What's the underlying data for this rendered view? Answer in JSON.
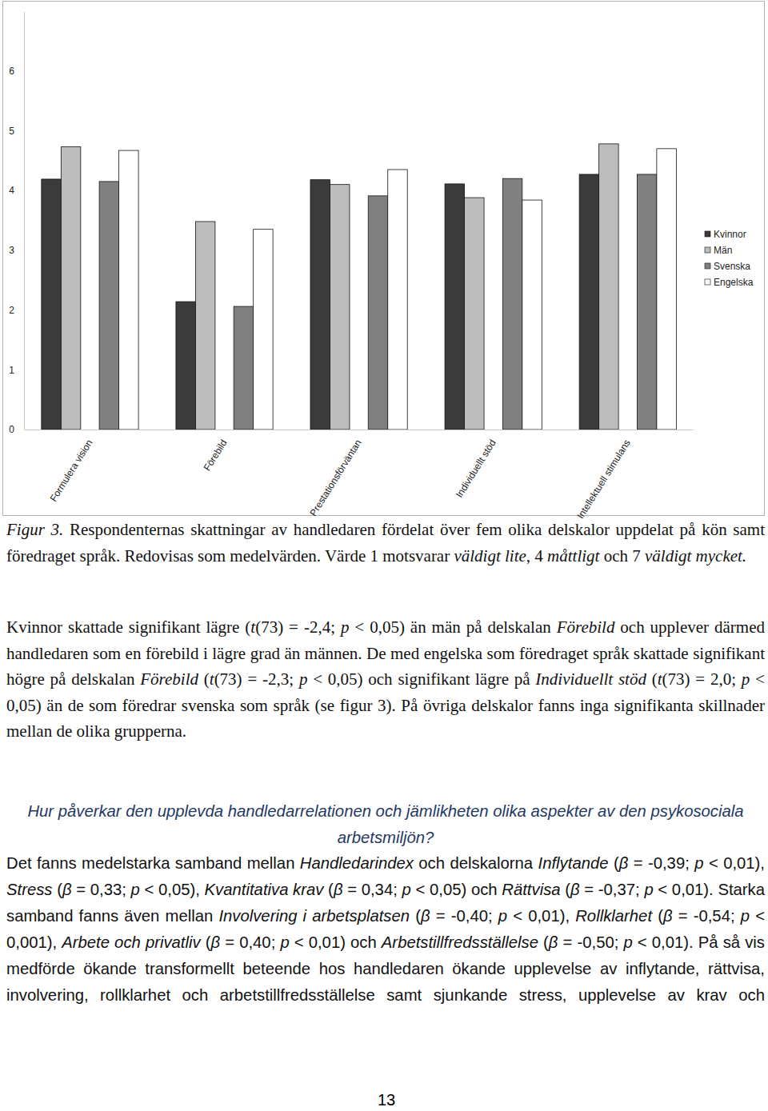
{
  "chart_data": {
    "type": "bar",
    "categories": [
      "Formulera vision",
      "Förebild",
      "Prestationsförväntan",
      "Individuellt stöd",
      "Intellektuell stimulans"
    ],
    "series": [
      {
        "name": "Kvinnor",
        "color": "#3b3b3b",
        "values": [
          4.19,
          2.14,
          4.18,
          4.11,
          4.27
        ]
      },
      {
        "name": "Män",
        "color": "#bdbdbd",
        "values": [
          4.73,
          3.48,
          4.1,
          3.88,
          4.78
        ]
      },
      {
        "name": "Svenska",
        "color": "#808080",
        "values": [
          4.15,
          2.06,
          3.91,
          4.2,
          4.27
        ]
      },
      {
        "name": "Engelska",
        "color": "#ffffff",
        "values": [
          4.67,
          3.35,
          4.35,
          3.84,
          4.7
        ]
      }
    ],
    "ylim": [
      0,
      7
    ],
    "yticks": [
      0,
      1,
      2,
      3,
      4,
      5,
      6
    ],
    "grid": false,
    "legend": "right"
  },
  "page": {
    "caption": [
      {
        "italic": "Figur 3."
      },
      " Respondenternas skattningar av handledaren fördelat över fem olika delskalor uppdelat på kön samt föredraget språk. Redovisas som medelvärden. Värde 1 motsvarar ",
      {
        "italic": "väldigt lite"
      },
      ", 4 ",
      {
        "italic": "måttligt"
      },
      " och 7 ",
      {
        "italic": "väldigt mycket."
      }
    ],
    "paragraphs": [
      [
        "Kvinnor skattade signifikant lägre (",
        {
          "italic": "t"
        },
        "(73) = -2,4; ",
        {
          "italic": "p"
        },
        " < 0,05) än män på delskalan ",
        {
          "italic": "Förebild"
        },
        " och upplever därmed handledaren som en förebild i lägre grad än männen. De med engelska som föredraget språk skattade signifikant högre på delskalan ",
        {
          "italic": "Förebild"
        },
        " (",
        {
          "italic": "t"
        },
        "(73) = -2,3; ",
        {
          "italic": "p"
        },
        " < 0,05) och signifikant lägre på ",
        {
          "italic": "Individuellt stöd"
        },
        " (",
        {
          "italic": "t"
        },
        "(73) = 2,0; ",
        {
          "italic": "p"
        },
        " < 0,05) än de som föredrar svenska som språk (se figur 3). På övriga delskalor fanns inga signifikanta skillnader mellan de olika grupperna."
      ],
      [
        "Det fanns medelstarka samband mellan ",
        {
          "italic": "Handledarindex"
        },
        " och delskalorna ",
        {
          "italic": "Inflytande"
        },
        " (",
        {
          "italic": "β"
        },
        " = -0,39; ",
        {
          "italic": "p"
        },
        " < 0,01), ",
        {
          "italic": "Stress"
        },
        " (",
        {
          "italic": "β"
        },
        " = 0,33; ",
        {
          "italic": "p"
        },
        " < 0,05), ",
        {
          "italic": "Kvantitativa krav"
        },
        " (",
        {
          "italic": "β"
        },
        " = 0,34; ",
        {
          "italic": "p"
        },
        " < 0,05) och ",
        {
          "italic": "Rättvisa"
        },
        " (",
        {
          "italic": "β"
        },
        " = -0,37; ",
        {
          "italic": "p"
        },
        " < 0,01). Starka samband fanns även mellan ",
        {
          "italic": "Involvering i arbetsplatsen"
        },
        " (",
        {
          "italic": "β"
        },
        " = -0,40; ",
        {
          "italic": "p"
        },
        " < 0,01), ",
        {
          "italic": "Rollklarhet"
        },
        " (",
        {
          "italic": "β"
        },
        " = -0,54; ",
        {
          "italic": "p"
        },
        " < 0,001), ",
        {
          "italic": "Arbete och privatliv"
        },
        " (",
        {
          "italic": "β"
        },
        " = 0,40; ",
        {
          "italic": "p"
        },
        " < 0,01) och ",
        {
          "italic": "Arbetstillfredsställelse"
        },
        " (",
        {
          "italic": "β"
        },
        " = -0,50; ",
        {
          "italic": "p"
        },
        " < 0,01). På så vis medförde ökande transformellt beteende hos handledaren ökande upplevelse av inflytande, rättvisa, involvering, rollklarhet och arbetstillfredsställelse samt sjunkande stress, upplevelse av krav och"
      ]
    ],
    "heading": "Hur påverkar den upplevda handledarrelationen och jämlikheten olika aspekter av den psykosociala arbetsmiljön?",
    "page_number": "13"
  }
}
